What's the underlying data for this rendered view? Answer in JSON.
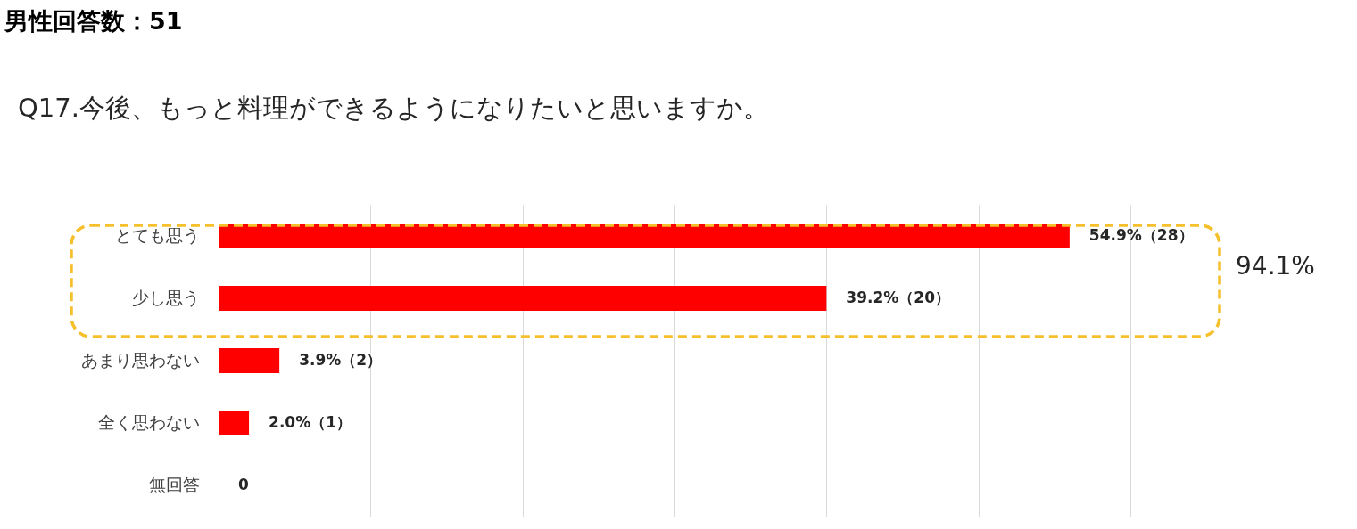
{
  "chart_data": {
    "type": "bar",
    "orientation": "horizontal",
    "title": "男性回答数：51",
    "subtitle": "Q17.今後、もっと料理ができるようになりたいと思いますか。",
    "categories": [
      "とても思う",
      "少し思う",
      "あまり思わない",
      "全く思わない",
      "無回答"
    ],
    "values": [
      28,
      20,
      2,
      1,
      0
    ],
    "color": "#ff0000",
    "value_labels": [
      "54.9%（28）",
      "39.2%（20）",
      "3.9%（2）",
      "2.0%（1）",
      "0"
    ],
    "xlim": [
      0,
      30
    ],
    "xticks": [
      {
        "value": 0,
        "label": null
      },
      {
        "value": 5,
        "label": null
      },
      {
        "value": 10,
        "label": null
      },
      {
        "value": 15,
        "label": null
      },
      {
        "value": 20,
        "label": null
      },
      {
        "value": 25,
        "label": null
      },
      {
        "value": 30,
        "label": null
      }
    ],
    "tick_labels": "y",
    "grid": "x",
    "annotations": [
      "94.1%"
    ]
  }
}
